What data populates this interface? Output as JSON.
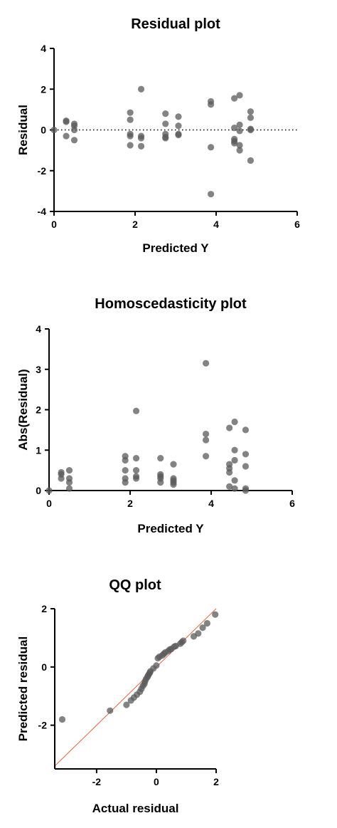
{
  "colors": {
    "point": "#5a5a5a",
    "axis": "#000000",
    "ref_dotted": "#000000",
    "ref_line": "#e0673f"
  },
  "chart_data": [
    {
      "type": "scatter",
      "title": "Residual plot",
      "xlabel": "Predicted Y",
      "ylabel": "Residual",
      "xlim": [
        0,
        6
      ],
      "ylim": [
        -4,
        4
      ],
      "xticks": [
        0,
        2,
        4,
        6
      ],
      "yticks": [
        -4,
        -2,
        0,
        2,
        4
      ],
      "reference_line": {
        "style": "dotted",
        "y": 0
      },
      "points": [
        [
          0,
          0
        ],
        [
          0.3,
          0.45
        ],
        [
          0.3,
          0.4
        ],
        [
          0.3,
          -0.3
        ],
        [
          0.5,
          0.3
        ],
        [
          0.5,
          0.2
        ],
        [
          0.5,
          0.0
        ],
        [
          0.5,
          -0.5
        ],
        [
          1.88,
          0.85
        ],
        [
          1.88,
          0.5
        ],
        [
          1.88,
          -0.2
        ],
        [
          1.88,
          -0.3
        ],
        [
          1.88,
          -0.75
        ],
        [
          2.15,
          2.0
        ],
        [
          2.15,
          -0.3
        ],
        [
          2.15,
          -0.4
        ],
        [
          2.15,
          -0.8
        ],
        [
          2.75,
          0.8
        ],
        [
          2.75,
          0.3
        ],
        [
          2.75,
          -0.2
        ],
        [
          2.75,
          -0.35
        ],
        [
          2.75,
          -0.4
        ],
        [
          3.07,
          0.65
        ],
        [
          3.07,
          0.2
        ],
        [
          3.07,
          -0.2
        ],
        [
          3.07,
          -0.25
        ],
        [
          3.87,
          1.4
        ],
        [
          3.87,
          1.25
        ],
        [
          3.87,
          -0.85
        ],
        [
          3.87,
          -3.15
        ],
        [
          4.45,
          1.55
        ],
        [
          4.45,
          0.1
        ],
        [
          4.45,
          -0.45
        ],
        [
          4.45,
          -0.55
        ],
        [
          4.45,
          -0.65
        ],
        [
          4.58,
          1.7
        ],
        [
          4.58,
          0.25
        ],
        [
          4.58,
          -0.05
        ],
        [
          4.58,
          -0.75
        ],
        [
          4.58,
          -1.0
        ],
        [
          4.85,
          0.9
        ],
        [
          4.85,
          0.6
        ],
        [
          4.85,
          0.05
        ],
        [
          4.85,
          0.0
        ],
        [
          4.85,
          -1.5
        ]
      ]
    },
    {
      "type": "scatter",
      "title": "Homoscedasticity plot",
      "xlabel": "Predicted Y",
      "ylabel": "Abs(Residual)",
      "xlim": [
        0,
        6
      ],
      "ylim": [
        0,
        4
      ],
      "xticks": [
        0,
        2,
        4,
        6
      ],
      "yticks": [
        0,
        1,
        2,
        3,
        4
      ],
      "points": [
        [
          0,
          0
        ],
        [
          0.3,
          0.45
        ],
        [
          0.3,
          0.4
        ],
        [
          0.3,
          0.3
        ],
        [
          0.5,
          0.5
        ],
        [
          0.5,
          0.3
        ],
        [
          0.5,
          0.2
        ],
        [
          0.5,
          0.05
        ],
        [
          1.88,
          0.85
        ],
        [
          1.88,
          0.75
        ],
        [
          1.88,
          0.5
        ],
        [
          1.88,
          0.3
        ],
        [
          1.88,
          0.2
        ],
        [
          2.15,
          1.97
        ],
        [
          2.15,
          0.8
        ],
        [
          2.15,
          0.5
        ],
        [
          2.15,
          0.35
        ],
        [
          2.15,
          0.3
        ],
        [
          2.75,
          0.8
        ],
        [
          2.75,
          0.4
        ],
        [
          2.75,
          0.35
        ],
        [
          2.75,
          0.3
        ],
        [
          2.75,
          0.2
        ],
        [
          3.07,
          0.65
        ],
        [
          3.07,
          0.3
        ],
        [
          3.07,
          0.25
        ],
        [
          3.07,
          0.2
        ],
        [
          3.07,
          0.15
        ],
        [
          3.87,
          3.15
        ],
        [
          3.87,
          1.4
        ],
        [
          3.87,
          1.25
        ],
        [
          3.87,
          0.85
        ],
        [
          4.45,
          1.55
        ],
        [
          4.45,
          0.65
        ],
        [
          4.45,
          0.55
        ],
        [
          4.45,
          0.45
        ],
        [
          4.45,
          0.1
        ],
        [
          4.58,
          1.7
        ],
        [
          4.58,
          1.0
        ],
        [
          4.58,
          0.75
        ],
        [
          4.58,
          0.25
        ],
        [
          4.58,
          0.05
        ],
        [
          4.85,
          1.5
        ],
        [
          4.85,
          0.9
        ],
        [
          4.85,
          0.6
        ],
        [
          4.85,
          0.05
        ],
        [
          4.85,
          0.0
        ]
      ]
    },
    {
      "type": "scatter",
      "title": "QQ plot",
      "xlabel": "Actual residual",
      "ylabel": "Predicted residual",
      "xlim": [
        -3.4,
        2
      ],
      "ylim": [
        -3.5,
        2
      ],
      "xticks": [
        -2,
        0,
        2
      ],
      "yticks": [
        -2,
        0,
        2
      ],
      "reference_line": {
        "style": "solid",
        "from": [
          -3.4,
          -3.4
        ],
        "to": [
          2,
          2
        ]
      },
      "points": [
        [
          -3.15,
          -1.8
        ],
        [
          -1.55,
          -1.5
        ],
        [
          -1.0,
          -1.3
        ],
        [
          -0.85,
          -1.15
        ],
        [
          -0.75,
          -1.05
        ],
        [
          -0.65,
          -0.95
        ],
        [
          -0.55,
          -0.85
        ],
        [
          -0.5,
          -0.75
        ],
        [
          -0.45,
          -0.65
        ],
        [
          -0.4,
          -0.58
        ],
        [
          -0.38,
          -0.5
        ],
        [
          -0.35,
          -0.42
        ],
        [
          -0.3,
          -0.35
        ],
        [
          -0.28,
          -0.3
        ],
        [
          -0.25,
          -0.25
        ],
        [
          -0.22,
          -0.2
        ],
        [
          -0.2,
          -0.15
        ],
        [
          -0.1,
          -0.05
        ],
        [
          0.0,
          0.05
        ],
        [
          0.05,
          0.3
        ],
        [
          0.1,
          0.35
        ],
        [
          0.2,
          0.4
        ],
        [
          0.25,
          0.45
        ],
        [
          0.3,
          0.5
        ],
        [
          0.4,
          0.55
        ],
        [
          0.45,
          0.6
        ],
        [
          0.5,
          0.62
        ],
        [
          0.6,
          0.7
        ],
        [
          0.65,
          0.72
        ],
        [
          0.8,
          0.8
        ],
        [
          0.85,
          0.85
        ],
        [
          0.9,
          0.9
        ],
        [
          1.25,
          1.05
        ],
        [
          1.4,
          1.15
        ],
        [
          1.55,
          1.35
        ],
        [
          1.7,
          1.5
        ],
        [
          1.97,
          1.8
        ]
      ]
    }
  ]
}
